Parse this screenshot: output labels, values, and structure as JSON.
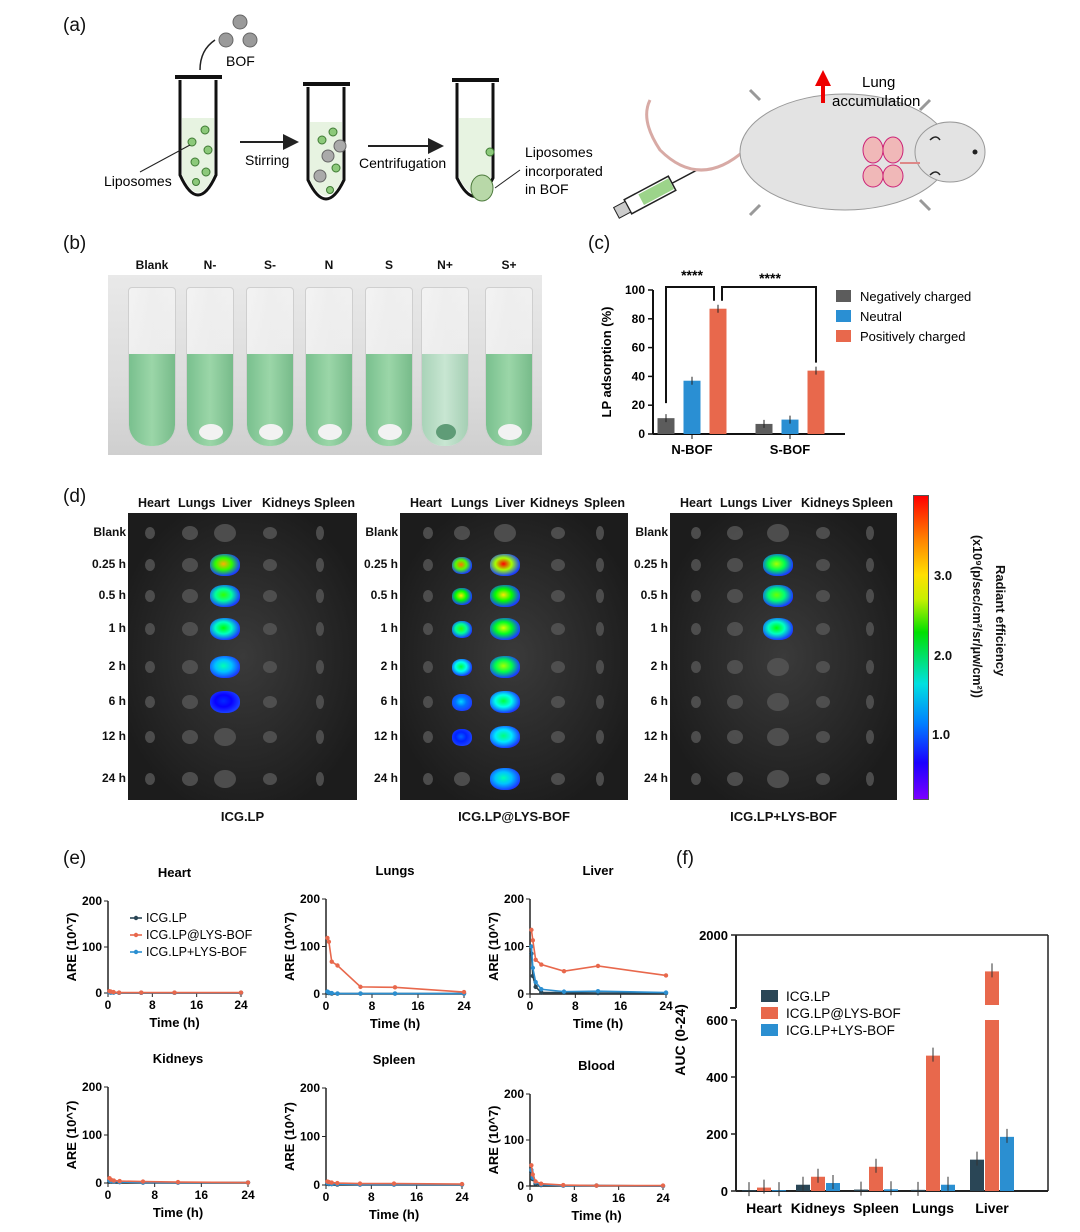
{
  "panel_labels": {
    "a": "(a)",
    "b": "(b)",
    "c": "(c)",
    "d": "(d)",
    "e": "(e)",
    "f": "(f)"
  },
  "schematic": {
    "bof": "BOF",
    "liposomes": "Liposomes",
    "stirring": "Stirring",
    "centrifugation": "Centrifugation",
    "incorporated": [
      "Liposomes",
      "incorporated",
      "in BOF"
    ],
    "lung_accumulation": [
      "Lung",
      "accumulation"
    ]
  },
  "photo": {
    "tube_labels": [
      "Blank",
      "N-",
      "S-",
      "N",
      "S",
      "N+",
      "S+"
    ]
  },
  "colors": {
    "dark": "#2a4656",
    "orange": "#e8684c",
    "blue": "#2b8fd1",
    "gray": "#5c5c5c"
  },
  "chart_data": [
    {
      "id": "c",
      "type": "bar",
      "ylabel": "LP adsorption (%)",
      "ylim": [
        0,
        100
      ],
      "yticks": [
        0,
        20,
        40,
        60,
        80,
        100
      ],
      "categories": [
        "N-BOF",
        "S-BOF"
      ],
      "series": [
        {
          "name": "Negatively charged",
          "values": [
            11,
            7
          ],
          "color": "#5c5c5c"
        },
        {
          "name": "Neutral",
          "values": [
            37,
            10
          ],
          "color": "#2a8fd3"
        },
        {
          "name": "Positively charged",
          "values": [
            87,
            44
          ],
          "color": "#e8684c"
        }
      ],
      "significance": [
        "****",
        "****"
      ],
      "legend": "right"
    },
    {
      "id": "e",
      "type": "line",
      "x": [
        0.25,
        0.5,
        1,
        2,
        6,
        12,
        24
      ],
      "xlabel": "Time (h)",
      "ylabel": "ARE (10^7)",
      "xticks": [
        0,
        8,
        16,
        24
      ],
      "yticks": [
        0,
        100,
        200
      ],
      "ylim": [
        0,
        200
      ],
      "xlim": [
        0,
        24
      ],
      "legend": [
        "ICG.LP",
        "ICG.LP@LYS-BOF",
        "ICG.LP+LYS-BOF"
      ],
      "panels": [
        {
          "title": "Heart",
          "series": [
            [
              2,
              1,
              1,
              0.5,
              0.5,
              0.5,
              0.5
            ],
            [
              4,
              3,
              2,
              1,
              1,
              1,
              1
            ],
            [
              2,
              1,
              1,
              0.5,
              0.5,
              0.5,
              0.5
            ]
          ]
        },
        {
          "title": "Lungs",
          "series": [
            [
              3,
              2,
              1,
              1,
              1,
              1,
              1
            ],
            [
              118,
              110,
              68,
              60,
              15,
              14,
              4
            ],
            [
              5,
              3,
              2,
              1,
              1,
              1,
              1
            ]
          ]
        },
        {
          "title": "Liver",
          "series": [
            [
              85,
              38,
              15,
              3,
              3,
              2,
              2
            ],
            [
              135,
              113,
              72,
              62,
              48,
              59,
              39
            ],
            [
              100,
              55,
              25,
              10,
              5,
              6,
              3
            ]
          ]
        },
        {
          "title": "Kidneys",
          "series": [
            [
              6,
              4,
              3,
              2,
              1,
              1,
              1
            ],
            [
              10,
              7,
              5,
              4,
              3,
              2,
              1
            ],
            [
              5,
              4,
              3,
              2,
              1,
              1,
              1
            ]
          ]
        },
        {
          "title": "Spleen",
          "series": [
            [
              3,
              2,
              2,
              1,
              1,
              1,
              1
            ],
            [
              7,
              6,
              5,
              4,
              3,
              3,
              2
            ],
            [
              4,
              3,
              2,
              2,
              1,
              1,
              1
            ]
          ]
        },
        {
          "title": "Blood",
          "series": [
            [
              30,
              15,
              5,
              2,
              1,
              1,
              0
            ],
            [
              45,
              25,
              10,
              5,
              2,
              1,
              1
            ],
            [
              35,
              18,
              8,
              3,
              1,
              1,
              0
            ]
          ]
        }
      ]
    },
    {
      "id": "f",
      "type": "bar",
      "ylabel": "AUC (0-24)",
      "yticks": [
        0,
        200,
        400,
        600,
        2000
      ],
      "ylim": [
        0,
        2000
      ],
      "axis_break": [
        600,
        1000
      ],
      "categories": [
        "Heart",
        "Kidneys",
        "Spleen",
        "Lungs",
        "Liver"
      ],
      "series": [
        {
          "name": "ICG.LP",
          "values": [
            3,
            22,
            5,
            4,
            110
          ]
        },
        {
          "name": "ICG.LP@LYS-BOF",
          "values": [
            12,
            50,
            85,
            475,
            1480
          ]
        },
        {
          "name": "ICG.LP+LYS-BOF",
          "values": [
            3,
            28,
            6,
            22,
            190
          ]
        }
      ],
      "legend": "upper-left"
    }
  ],
  "imaging": {
    "organs": [
      "Heart",
      "Lungs",
      "Liver",
      "Kidneys",
      "Spleen"
    ],
    "rows": [
      "Blank",
      "0.25 h",
      "0.5 h",
      "1 h",
      "2 h",
      "6 h",
      "12 h",
      "24 h"
    ],
    "colorbar": {
      "title": "Radiant efficiency",
      "units": "(x10⁹(p/sec/cm²/sr/μw/cm²))",
      "ticks": [
        "3.0",
        "2.0",
        "1.0"
      ]
    },
    "groups": [
      {
        "title": "ICG.LP",
        "signal": {
          "Lungs": [
            0,
            0,
            0,
            0,
            0,
            0,
            0,
            0
          ],
          "Liver": [
            0,
            0.85,
            0.6,
            0.55,
            0.4,
            0.15,
            0,
            0
          ]
        }
      },
      {
        "title": "ICG.LP@LYS-BOF",
        "signal": {
          "Lungs": [
            0,
            0.9,
            0.8,
            0.6,
            0.5,
            0.3,
            0.2,
            0
          ],
          "Liver": [
            0,
            1,
            0.8,
            0.75,
            0.7,
            0.5,
            0.45,
            0.4
          ]
        }
      },
      {
        "title": "ICG.LP+LYS-BOF",
        "signal": {
          "Lungs": [
            0,
            0,
            0,
            0,
            0,
            0,
            0,
            0
          ],
          "Liver": [
            0,
            0.7,
            0.65,
            0.55,
            0,
            0,
            0,
            0
          ]
        }
      }
    ]
  }
}
